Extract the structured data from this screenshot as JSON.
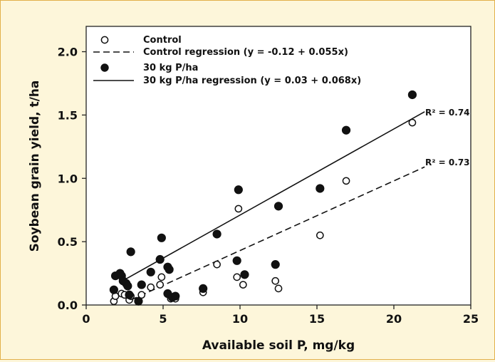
{
  "chart_data": {
    "type": "scatter",
    "xlabel": "Available soil P, mg/kg",
    "ylabel": "Soybean grain yield, t/ha",
    "xlim": [
      0,
      25
    ],
    "ylim": [
      0,
      2.2
    ],
    "x_ticks": [
      "0",
      "5",
      "10",
      "15",
      "20",
      "25"
    ],
    "y_ticks": [
      "0.0",
      "0.5",
      "1.0",
      "1.5",
      "2.0"
    ],
    "x_tick_values": [
      0,
      5,
      10,
      15,
      20,
      25
    ],
    "y_tick_values": [
      0,
      0.5,
      1.0,
      1.5,
      2.0
    ],
    "grid": false,
    "legend_position": "top-left",
    "series": [
      {
        "name": "Control",
        "marker": "open-circle",
        "color": "#000000",
        "points": [
          [
            1.8,
            0.03
          ],
          [
            1.9,
            0.07
          ],
          [
            2.3,
            0.09
          ],
          [
            2.5,
            0.08
          ],
          [
            2.8,
            0.04
          ],
          [
            2.9,
            0.07
          ],
          [
            3.6,
            0.08
          ],
          [
            3.4,
            0.03
          ],
          [
            4.2,
            0.14
          ],
          [
            4.8,
            0.16
          ],
          [
            4.9,
            0.22
          ],
          [
            5.5,
            0.05
          ],
          [
            5.8,
            0.05
          ],
          [
            7.6,
            0.1
          ],
          [
            8.5,
            0.32
          ],
          [
            9.8,
            0.22
          ],
          [
            9.9,
            0.76
          ],
          [
            10.2,
            0.16
          ],
          [
            12.3,
            0.19
          ],
          [
            12.5,
            0.13
          ],
          [
            15.2,
            0.55
          ],
          [
            16.9,
            0.98
          ],
          [
            21.2,
            1.44
          ]
        ]
      },
      {
        "name": "30 kg P/ha",
        "marker": "filled-circle",
        "color": "#000000",
        "points": [
          [
            1.8,
            0.12
          ],
          [
            1.9,
            0.23
          ],
          [
            2.2,
            0.25
          ],
          [
            2.3,
            0.23
          ],
          [
            2.4,
            0.19
          ],
          [
            2.6,
            0.17
          ],
          [
            2.7,
            0.15
          ],
          [
            2.8,
            0.08
          ],
          [
            2.9,
            0.42
          ],
          [
            3.4,
            0.03
          ],
          [
            3.6,
            0.16
          ],
          [
            4.2,
            0.26
          ],
          [
            4.8,
            0.36
          ],
          [
            4.9,
            0.53
          ],
          [
            5.3,
            0.09
          ],
          [
            5.3,
            0.3
          ],
          [
            5.4,
            0.28
          ],
          [
            5.6,
            0.06
          ],
          [
            5.8,
            0.07
          ],
          [
            7.6,
            0.13
          ],
          [
            8.5,
            0.56
          ],
          [
            9.8,
            0.35
          ],
          [
            9.9,
            0.91
          ],
          [
            10.3,
            0.24
          ],
          [
            12.3,
            0.32
          ],
          [
            12.5,
            0.78
          ],
          [
            15.2,
            0.92
          ],
          [
            16.9,
            1.38
          ],
          [
            21.2,
            1.66
          ]
        ]
      }
    ],
    "regressions": [
      {
        "name": "Control regression",
        "label": "Control regression  (y = -0.12 + 0.055x)",
        "intercept": -0.12,
        "slope": 0.055,
        "x_range": [
          2.9,
          22.0
        ],
        "style": "dashed",
        "r2_label": "R² = 0.73"
      },
      {
        "name": "30 kg P/ha regression",
        "label": "30 kg P/ha regression  (y = 0.03 + 0.068x)",
        "intercept": 0.03,
        "slope": 0.068,
        "x_range": [
          2.4,
          22.0
        ],
        "style": "solid",
        "r2_label": "R² = 0.74"
      }
    ],
    "legend": [
      {
        "key": "control",
        "text": "Control",
        "symbol": "open-circle"
      },
      {
        "key": "control-regression",
        "text": "Control regression  (y = -0.12 + 0.055x)",
        "symbol": "dashed-line"
      },
      {
        "key": "treatment",
        "text": "30 kg P/ha",
        "symbol": "filled-circle"
      },
      {
        "key": "treatment-regression",
        "text": "30 kg P/ha regression  (y = 0.03 + 0.068x)",
        "symbol": "solid-line"
      }
    ]
  },
  "colors": {
    "page_background": "#fdf6da",
    "frame_border": "#e2b04a",
    "plot_background": "#ffffff",
    "ink": "#000000"
  }
}
